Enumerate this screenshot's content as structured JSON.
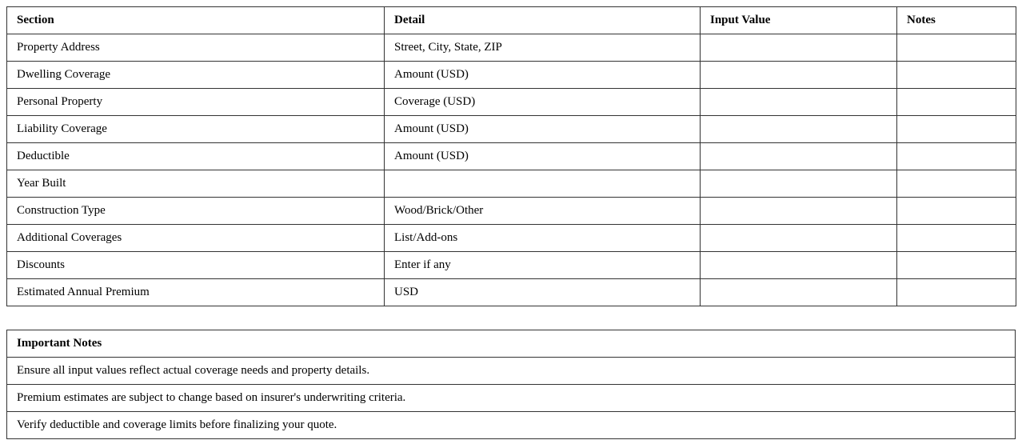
{
  "main_table": {
    "headers": [
      "Section",
      "Detail",
      "Input Value",
      "Notes"
    ],
    "rows": [
      {
        "section": "Property Address",
        "detail": "Street, City, State, ZIP",
        "input": "",
        "notes": ""
      },
      {
        "section": "Dwelling Coverage",
        "detail": "Amount (USD)",
        "input": "",
        "notes": ""
      },
      {
        "section": "Personal Property",
        "detail": "Coverage (USD)",
        "input": "",
        "notes": ""
      },
      {
        "section": "Liability Coverage",
        "detail": "Amount (USD)",
        "input": "",
        "notes": ""
      },
      {
        "section": "Deductible",
        "detail": "Amount (USD)",
        "input": "",
        "notes": ""
      },
      {
        "section": "Year Built",
        "detail": "",
        "input": "",
        "notes": ""
      },
      {
        "section": "Construction Type",
        "detail": "Wood/Brick/Other",
        "input": "",
        "notes": ""
      },
      {
        "section": "Additional Coverages",
        "detail": "List/Add-ons",
        "input": "",
        "notes": ""
      },
      {
        "section": "Discounts",
        "detail": "Enter if any",
        "input": "",
        "notes": ""
      },
      {
        "section": "Estimated Annual Premium",
        "detail": "USD",
        "input": "",
        "notes": ""
      }
    ]
  },
  "notes_table": {
    "header": "Important Notes",
    "items": [
      "Ensure all input values reflect actual coverage needs and property details.",
      "Premium estimates are subject to change based on insurer's underwriting criteria.",
      "Verify deductible and coverage limits before finalizing your quote."
    ]
  }
}
